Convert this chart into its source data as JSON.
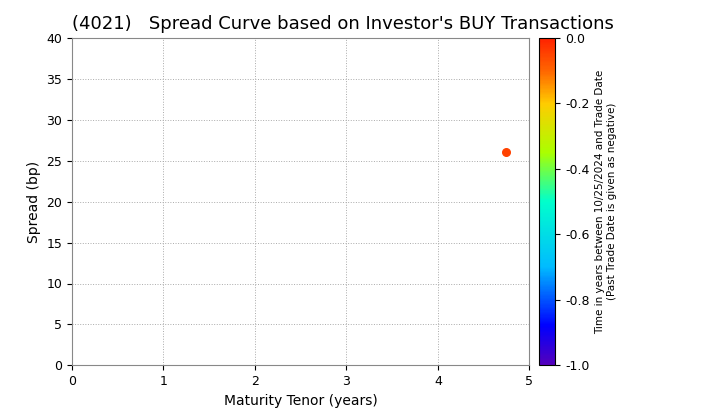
{
  "title": "(4021)   Spread Curve based on Investor's BUY Transactions",
  "xlabel": "Maturity Tenor (years)",
  "ylabel": "Spread (bp)",
  "xlim": [
    0,
    5
  ],
  "ylim": [
    0,
    40
  ],
  "xticks": [
    0,
    1,
    2,
    3,
    4,
    5
  ],
  "yticks": [
    0,
    5,
    10,
    15,
    20,
    25,
    30,
    35,
    40
  ],
  "scatter_x": [
    4.75
  ],
  "scatter_y": [
    26
  ],
  "scatter_color_value": [
    -0.05
  ],
  "colorbar_label_line1": "Time in years between 10/25/2024 and Trade Date",
  "colorbar_label_line2": "(Past Trade Date is given as negative)",
  "colorbar_vmin": -1.0,
  "colorbar_vmax": 0.0,
  "colorbar_ticks": [
    0.0,
    -0.2,
    -0.4,
    -0.6,
    -0.8,
    -1.0
  ],
  "grid_color": "#aaaaaa",
  "background_color": "#ffffff",
  "title_fontsize": 13,
  "label_fontsize": 10,
  "tick_fontsize": 9,
  "cbar_label_fontsize": 7.5,
  "scatter_size": 30,
  "cmap_colors": [
    [
      0.0,
      "#5500bb"
    ],
    [
      0.12,
      "#0000ff"
    ],
    [
      0.3,
      "#00bbff"
    ],
    [
      0.5,
      "#00ffcc"
    ],
    [
      0.65,
      "#aaff00"
    ],
    [
      0.8,
      "#ffcc00"
    ],
    [
      0.9,
      "#ff6600"
    ],
    [
      1.0,
      "#ff2200"
    ]
  ]
}
